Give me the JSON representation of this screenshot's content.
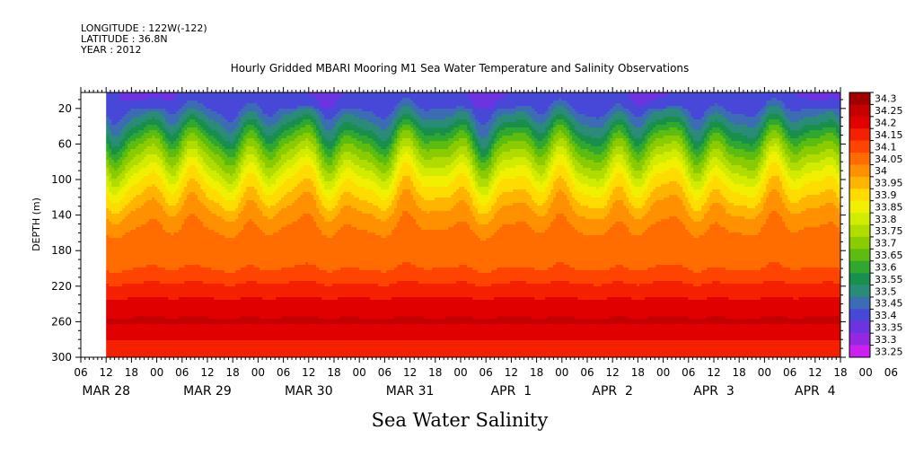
{
  "header_lines": [
    "LONGITUDE : 122W(-122)",
    "LATITUDE : 36.8N",
    "YEAR : 2012"
  ],
  "chart_data": {
    "type": "heatmap",
    "title": "Hourly Gridded MBARI Mooring M1 Sea Water Temperature and Salinity Observations",
    "ylabel": "DEPTH (m)",
    "xlabel": "Sea Water Salinity",
    "y_ticks": [
      20,
      60,
      100,
      140,
      180,
      220,
      260,
      300
    ],
    "ylim": [
      300,
      2
    ],
    "x_hour_ticks": [
      "06",
      "12",
      "18",
      "00",
      "06",
      "12",
      "18",
      "00",
      "06",
      "12",
      "18",
      "00",
      "06",
      "12",
      "18",
      "00",
      "06",
      "12",
      "18",
      "00",
      "06",
      "12",
      "18",
      "00",
      "06",
      "12",
      "18",
      "00",
      "06",
      "12",
      "18",
      "00",
      "06"
    ],
    "x_date_labels": [
      {
        "label": "MAR 28",
        "hour": 0
      },
      {
        "label": "MAR 29",
        "hour": 24
      },
      {
        "label": "MAR 30",
        "hour": 48
      },
      {
        "label": "MAR 31",
        "hour": 72
      },
      {
        "label": "APR  1",
        "hour": 96
      },
      {
        "label": "APR  2",
        "hour": 120
      },
      {
        "label": "APR  3",
        "hour": 144
      },
      {
        "label": "APR  4",
        "hour": 168
      }
    ],
    "x_axis_start_hour": -6,
    "x_axis_end_hour": 174,
    "data_start_hour": 0,
    "colorbar": {
      "levels": [
        34.3,
        34.25,
        34.2,
        34.15,
        34.1,
        34.05,
        34,
        33.95,
        33.9,
        33.85,
        33.8,
        33.75,
        33.7,
        33.65,
        33.6,
        33.55,
        33.5,
        33.45,
        33.4,
        33.35,
        33.3,
        33.25
      ],
      "colors": [
        "#a00000",
        "#c40000",
        "#e00000",
        "#f52000",
        "#ff4400",
        "#ff6c00",
        "#ff9000",
        "#ffb400",
        "#ffdc00",
        "#f0f000",
        "#d2ec00",
        "#b0dc00",
        "#8acc00",
        "#5cbc10",
        "#30a830",
        "#18904c",
        "#2a8c78",
        "#3c6cb4",
        "#4848d8",
        "#6c34e0",
        "#9428e0",
        "#cc20f0"
      ]
    },
    "depth_profile": [
      {
        "depth": 2,
        "salinity": 33.42
      },
      {
        "depth": 20,
        "salinity": 33.45
      },
      {
        "depth": 40,
        "salinity": 33.55
      },
      {
        "depth": 60,
        "salinity": 33.68
      },
      {
        "depth": 80,
        "salinity": 33.78
      },
      {
        "depth": 100,
        "salinity": 33.88
      },
      {
        "depth": 120,
        "salinity": 33.95
      },
      {
        "depth": 140,
        "salinity": 34.02
      },
      {
        "depth": 160,
        "salinity": 34.06
      },
      {
        "depth": 180,
        "salinity": 34.07
      },
      {
        "depth": 200,
        "salinity": 34.1
      },
      {
        "depth": 220,
        "salinity": 34.16
      },
      {
        "depth": 240,
        "salinity": 34.22
      },
      {
        "depth": 260,
        "salinity": 34.26
      },
      {
        "depth": 280,
        "salinity": 34.2
      },
      {
        "depth": 300,
        "salinity": 34.18
      }
    ]
  }
}
